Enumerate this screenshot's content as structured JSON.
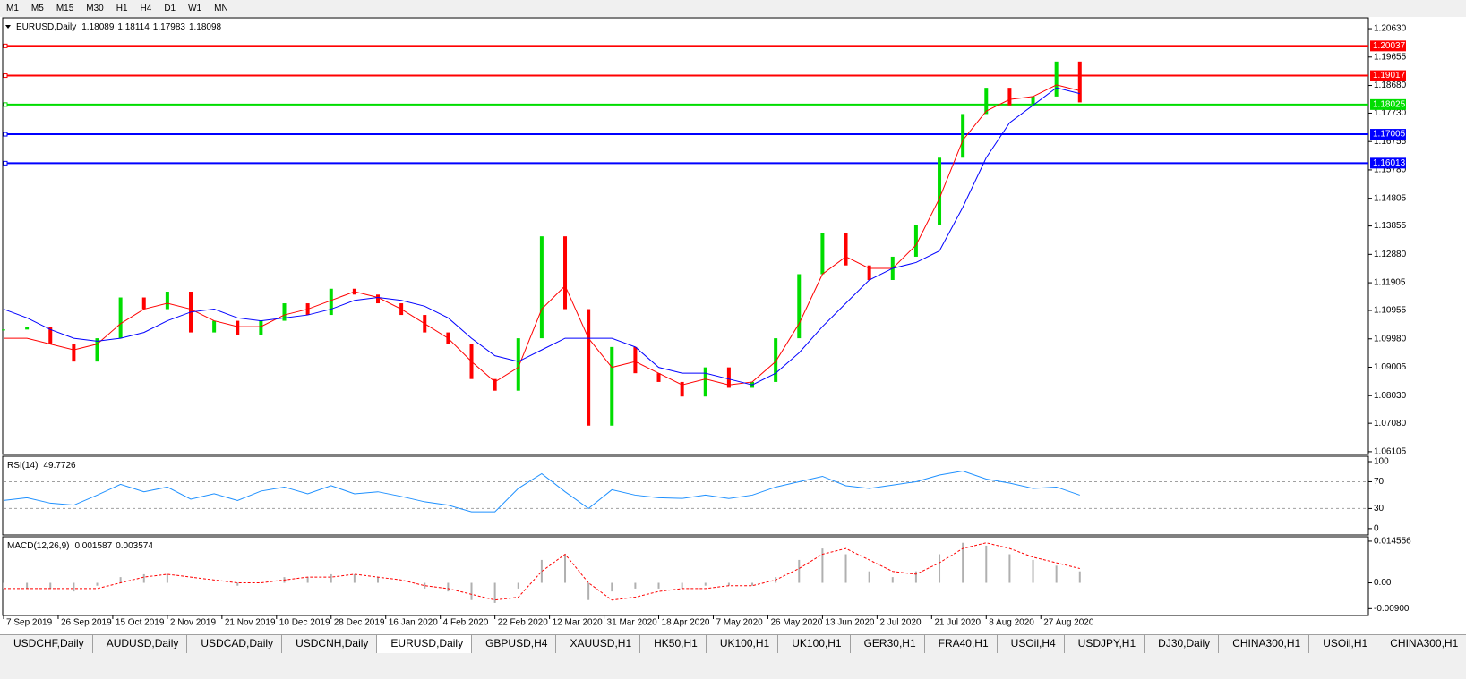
{
  "toolbar": {
    "timeframes": [
      "M1",
      "M5",
      "M15",
      "M30",
      "H1",
      "H4",
      "D1",
      "W1",
      "MN"
    ]
  },
  "chart_data": [
    {
      "type": "candlestick",
      "title": "EURUSD,Daily",
      "header_values": [
        1.18089,
        1.18114,
        1.17983,
        1.18098
      ],
      "up_color": "#00dd00",
      "down_color": "#ff0000",
      "x": [
        0,
        6,
        12,
        18,
        24,
        30,
        36,
        42,
        48,
        54,
        60,
        66,
        72,
        78,
        84,
        90,
        96,
        102,
        108,
        114,
        120,
        126,
        132,
        138,
        144,
        150,
        156,
        162,
        168,
        174,
        180,
        186,
        192,
        198,
        204,
        210,
        216,
        222,
        228,
        234,
        240,
        246,
        252,
        258,
        264,
        270,
        276
      ],
      "close": [
        1.103,
        1.104,
        1.098,
        1.092,
        1.1,
        1.114,
        1.11,
        1.116,
        1.102,
        1.106,
        1.101,
        1.106,
        1.112,
        1.108,
        1.117,
        1.115,
        1.112,
        1.108,
        1.102,
        1.098,
        1.086,
        1.082,
        1.1,
        1.135,
        1.11,
        1.07,
        1.097,
        1.088,
        1.085,
        1.08,
        1.09,
        1.083,
        1.085,
        1.1,
        1.122,
        1.136,
        1.125,
        1.12,
        1.128,
        1.139,
        1.162,
        1.177,
        1.186,
        1.18,
        1.183,
        1.195,
        1.181
      ],
      "series": [
        {
          "color": "#ff0000",
          "values": [
            1.1,
            1.1,
            1.098,
            1.096,
            1.098,
            1.105,
            1.11,
            1.112,
            1.11,
            1.106,
            1.104,
            1.104,
            1.108,
            1.11,
            1.113,
            1.116,
            1.114,
            1.11,
            1.105,
            1.1,
            1.092,
            1.085,
            1.09,
            1.11,
            1.118,
            1.1,
            1.09,
            1.092,
            1.088,
            1.084,
            1.086,
            1.084,
            1.085,
            1.092,
            1.105,
            1.122,
            1.128,
            1.124,
            1.124,
            1.132,
            1.148,
            1.168,
            1.178,
            1.182,
            1.183,
            1.187,
            1.185
          ]
        },
        {
          "color": "#0000ff",
          "values": [
            1.11,
            1.107,
            1.103,
            1.1,
            1.099,
            1.1,
            1.102,
            1.106,
            1.109,
            1.11,
            1.107,
            1.106,
            1.107,
            1.108,
            1.11,
            1.113,
            1.114,
            1.113,
            1.111,
            1.107,
            1.1,
            1.094,
            1.092,
            1.096,
            1.1,
            1.1,
            1.1,
            1.097,
            1.09,
            1.088,
            1.088,
            1.086,
            1.084,
            1.088,
            1.095,
            1.104,
            1.112,
            1.12,
            1.124,
            1.126,
            1.13,
            1.145,
            1.162,
            1.174,
            1.18,
            1.186,
            1.184
          ]
        }
      ],
      "levels": [
        {
          "value": 1.20037,
          "color": "#ff0000"
        },
        {
          "value": 1.19017,
          "color": "#ff0000"
        },
        {
          "value": 1.18025,
          "color": "#00dd00"
        },
        {
          "value": 1.17005,
          "color": "#0000ff"
        },
        {
          "value": 1.16013,
          "color": "#0000ff"
        }
      ],
      "xlim": [
        0,
        350
      ],
      "xticks": [
        {
          "value": 0,
          "label": "7 Sep 2019"
        },
        {
          "value": 14,
          "label": "26 Sep 2019"
        },
        {
          "value": 28,
          "label": "15 Oct 2019"
        },
        {
          "value": 42,
          "label": "2 Nov 2019"
        },
        {
          "value": 56,
          "label": "21 Nov 2019"
        },
        {
          "value": 70,
          "label": "10 Dec 2019"
        },
        {
          "value": 84,
          "label": "28 Dec 2019"
        },
        {
          "value": 98,
          "label": "16 Jan 2020"
        },
        {
          "value": 112,
          "label": "4 Feb 2020"
        },
        {
          "value": 126,
          "label": "22 Feb 2020"
        },
        {
          "value": 140,
          "label": "12 Mar 2020"
        },
        {
          "value": 154,
          "label": "31 Mar 2020"
        },
        {
          "value": 168,
          "label": "18 Apr 2020"
        },
        {
          "value": 182,
          "label": "7 May 2020"
        },
        {
          "value": 196,
          "label": "26 May 2020"
        },
        {
          "value": 210,
          "label": "13 Jun 2020"
        },
        {
          "value": 224,
          "label": "2 Jul 2020"
        },
        {
          "value": 238,
          "label": "21 Jul 2020"
        },
        {
          "value": 252,
          "label": "8 Aug 2020"
        },
        {
          "value": 266,
          "label": "27 Aug 2020"
        }
      ],
      "ylim": [
        1.0601,
        1.21
      ],
      "yticks": [
        {
          "value": 1.2063,
          "label": "1.20630"
        },
        1.19655,
        {
          "value": 1.1868,
          "label": "1.18680"
        },
        {
          "value": 1.1773,
          "label": "1.17730"
        },
        1.16755,
        {
          "value": 1.1578,
          "label": "1.15780"
        },
        1.14805,
        1.13855,
        {
          "value": 1.1288,
          "label": "1.12880"
        },
        1.11905,
        1.10955,
        {
          "value": 1.0998,
          "label": "1.09980"
        },
        1.09005,
        {
          "value": 1.0803,
          "label": "1.08030"
        },
        {
          "value": 1.0708,
          "label": "1.07080"
        },
        1.06105
      ]
    },
    {
      "type": "line",
      "title": "RSI(14)",
      "header_values": [
        49.7726
      ],
      "color": "#1e90ff",
      "values": [
        42,
        46,
        38,
        35,
        50,
        66,
        55,
        62,
        44,
        52,
        42,
        56,
        62,
        52,
        64,
        52,
        55,
        48,
        40,
        35,
        25,
        25,
        60,
        82,
        55,
        30,
        58,
        50,
        46,
        45,
        50,
        45,
        50,
        62,
        70,
        78,
        64,
        60,
        65,
        70,
        80,
        86,
        74,
        68,
        60,
        62,
        50
      ],
      "levels": [
        70,
        30
      ],
      "ylim": [
        -9.5,
        108
      ],
      "yticks": [
        100,
        70,
        30,
        0
      ]
    },
    {
      "type": "macd",
      "title": "MACD(12,26,9)",
      "header_values": [
        0.001587,
        0.003574
      ],
      "series": [
        {
          "color": "#b0b0b0",
          "values": [
            -0.002,
            -0.002,
            -0.002,
            -0.003,
            -0.001,
            0.002,
            0.003,
            0.003,
            0.0,
            0.0,
            -0.001,
            0.0,
            0.002,
            0.002,
            0.003,
            0.003,
            0.002,
            0.0,
            -0.002,
            -0.003,
            -0.006,
            -0.007,
            -0.002,
            0.008,
            0.01,
            -0.006,
            -0.003,
            -0.002,
            -0.002,
            -0.002,
            -0.001,
            -0.001,
            -0.001,
            0.002,
            0.008,
            0.012,
            0.01,
            0.004,
            0.002,
            0.004,
            0.01,
            0.014,
            0.013,
            0.01,
            0.008,
            0.006,
            0.004
          ]
        },
        {
          "color": "#ff0000",
          "values": [
            -0.002,
            -0.002,
            -0.002,
            -0.002,
            -0.002,
            0.0,
            0.002,
            0.003,
            0.002,
            0.001,
            0.0,
            0.0,
            0.001,
            0.002,
            0.002,
            0.003,
            0.002,
            0.001,
            -0.001,
            -0.002,
            -0.004,
            -0.006,
            -0.005,
            0.004,
            0.01,
            0.0,
            -0.006,
            -0.005,
            -0.003,
            -0.002,
            -0.002,
            -0.001,
            -0.001,
            0.001,
            0.005,
            0.01,
            0.012,
            0.008,
            0.004,
            0.003,
            0.007,
            0.012,
            0.014,
            0.012,
            0.009,
            0.007,
            0.005
          ]
        }
      ],
      "ylim": [
        -0.0114,
        0.0161
      ],
      "yticks": [
        0.014556,
        {
          "value": 0,
          "label": "0.00"
        },
        {
          "value": -0.009,
          "label": "-0.00900"
        }
      ]
    }
  ],
  "tabs": [
    "USDCHF,Daily",
    "AUDUSD,Daily",
    "USDCAD,Daily",
    "USDCNH,Daily",
    "EURUSD,Daily",
    "GBPUSD,H4",
    "XAUUSD,H1",
    "HK50,H1",
    "UK100,H1",
    "UK100,H1",
    "GER30,H1",
    "FRA40,H1",
    "USOil,H4",
    "USDJPY,H1",
    "DJ30,Daily",
    "CHINA300,H1",
    "USOil,H1",
    "CHINA300,H1"
  ]
}
